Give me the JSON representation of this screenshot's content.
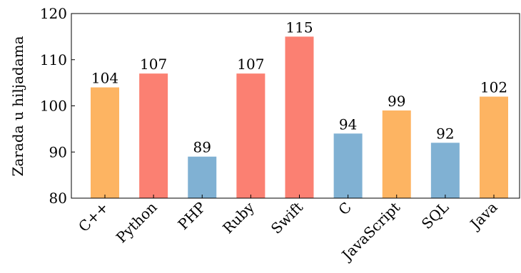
{
  "chart_data": {
    "type": "bar",
    "categories": [
      "C++",
      "Python",
      "PHP",
      "Ruby",
      "Swift",
      "C",
      "JavaScript",
      "SQL",
      "Java"
    ],
    "values": [
      104,
      107,
      89,
      107,
      115,
      94,
      99,
      92,
      102
    ],
    "bar_colors": [
      "#fdb462",
      "#fb8072",
      "#80b1d3",
      "#fb8072",
      "#fb8072",
      "#80b1d3",
      "#fdb462",
      "#80b1d3",
      "#fdb462"
    ],
    "data_labels": [
      "104",
      "107",
      "89",
      "107",
      "115",
      "94",
      "99",
      "92",
      "102"
    ],
    "title": "",
    "xlabel": "",
    "ylabel": "Zarada u hiljadama",
    "ylim": [
      80,
      120
    ],
    "yticks": [
      80,
      90,
      100,
      110,
      120
    ],
    "ytick_labels": [
      "80",
      "90",
      "100",
      "110",
      "120"
    ],
    "grid": false,
    "legend": null
  }
}
